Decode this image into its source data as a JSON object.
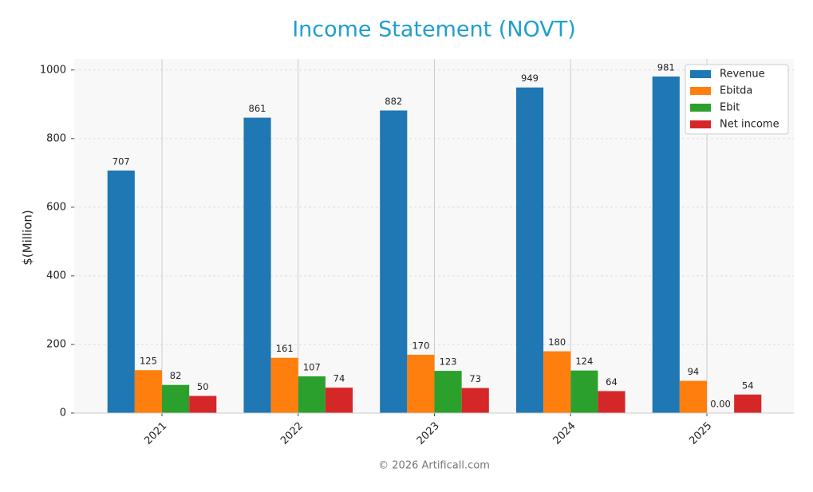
{
  "chart_data": {
    "type": "bar",
    "title": "Income Statement (NOVT)",
    "y_label": "$(Million)",
    "footer": "© 2026 Artificall.com",
    "categories": [
      "2021",
      "2022",
      "2023",
      "2024",
      "2025"
    ],
    "series": [
      {
        "name": "Revenue",
        "color": "#1f77b4",
        "values": [
          707,
          861,
          882,
          949,
          981
        ]
      },
      {
        "name": "Ebitda",
        "color": "#ff7f0e",
        "values": [
          125,
          161,
          170,
          180,
          94
        ]
      },
      {
        "name": "Ebit",
        "color": "#2ca02c",
        "values": [
          82,
          107,
          123,
          124,
          0
        ],
        "value_labels": [
          "82",
          "107",
          "123",
          "124",
          "0.00"
        ]
      },
      {
        "name": "Net income",
        "color": "#d62728",
        "values": [
          50,
          74,
          73,
          64,
          54
        ]
      }
    ],
    "ylim": [
      0,
      1032
    ],
    "yticks": [
      0,
      200,
      400,
      600,
      800,
      1000
    ],
    "grid": true,
    "legend": "upper right"
  }
}
